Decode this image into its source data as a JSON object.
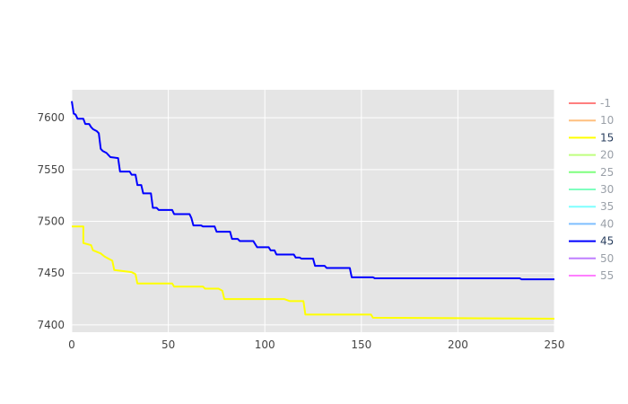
{
  "chart_data": {
    "type": "line",
    "title": "",
    "xlabel": "",
    "ylabel": "",
    "xlim": [
      0,
      250
    ],
    "ylim": [
      7393,
      7627
    ],
    "x_ticks": [
      0,
      50,
      100,
      150,
      200,
      250
    ],
    "y_ticks": [
      7400,
      7450,
      7500,
      7550,
      7600
    ],
    "x_tick_labels": [
      "0",
      "50",
      "100",
      "150",
      "200",
      "250"
    ],
    "y_tick_labels": [
      "7400",
      "7450",
      "7500",
      "7550",
      "7600"
    ],
    "grid": true,
    "legend_position": "right",
    "series": [
      {
        "name": "-1",
        "color": "#ff7f7f",
        "visible": false,
        "points": []
      },
      {
        "name": "10",
        "color": "#ffbf7f",
        "visible": false,
        "points": []
      },
      {
        "name": "15",
        "color": "#ffff00",
        "visible": true,
        "points": [
          [
            0,
            7495
          ],
          [
            6,
            7495
          ],
          [
            6,
            7479
          ],
          [
            10,
            7477
          ],
          [
            11,
            7472
          ],
          [
            15,
            7469
          ],
          [
            17,
            7466
          ],
          [
            19,
            7464
          ],
          [
            21,
            7462
          ],
          [
            22,
            7453
          ],
          [
            31,
            7451
          ],
          [
            33,
            7449
          ],
          [
            34,
            7440
          ],
          [
            52,
            7440
          ],
          [
            53,
            7437
          ],
          [
            68,
            7437
          ],
          [
            69,
            7435
          ],
          [
            76,
            7435
          ],
          [
            78,
            7433
          ],
          [
            79,
            7425
          ],
          [
            110,
            7425
          ],
          [
            113,
            7423
          ],
          [
            120,
            7423
          ],
          [
            121,
            7410
          ],
          [
            155,
            7410
          ],
          [
            156,
            7407
          ],
          [
            250,
            7406
          ]
        ]
      },
      {
        "name": "20",
        "color": "#bfff7f",
        "visible": false,
        "points": []
      },
      {
        "name": "25",
        "color": "#7fff7f",
        "visible": false,
        "points": []
      },
      {
        "name": "30",
        "color": "#7fffbf",
        "visible": false,
        "points": []
      },
      {
        "name": "35",
        "color": "#7fffff",
        "visible": false,
        "points": []
      },
      {
        "name": "40",
        "color": "#7fbfff",
        "visible": false,
        "points": []
      },
      {
        "name": "45",
        "color": "#0000ff",
        "visible": true,
        "points": [
          [
            0,
            7616
          ],
          [
            1,
            7604
          ],
          [
            2,
            7603
          ],
          [
            3,
            7599
          ],
          [
            6,
            7599
          ],
          [
            7,
            7594
          ],
          [
            9,
            7594
          ],
          [
            10,
            7591
          ],
          [
            11,
            7589
          ],
          [
            13,
            7587
          ],
          [
            14,
            7585
          ],
          [
            15,
            7570
          ],
          [
            16,
            7568
          ],
          [
            18,
            7566
          ],
          [
            19,
            7564
          ],
          [
            20,
            7562
          ],
          [
            24,
            7561
          ],
          [
            25,
            7548
          ],
          [
            30,
            7548
          ],
          [
            31,
            7545
          ],
          [
            33,
            7545
          ],
          [
            34,
            7535
          ],
          [
            36,
            7535
          ],
          [
            37,
            7527
          ],
          [
            41,
            7527
          ],
          [
            42,
            7513
          ],
          [
            44,
            7513
          ],
          [
            45,
            7511
          ],
          [
            52,
            7511
          ],
          [
            53,
            7507
          ],
          [
            61,
            7507
          ],
          [
            62,
            7503
          ],
          [
            63,
            7496
          ],
          [
            67,
            7496
          ],
          [
            68,
            7495
          ],
          [
            74,
            7495
          ],
          [
            75,
            7490
          ],
          [
            82,
            7490
          ],
          [
            83,
            7483
          ],
          [
            86,
            7483
          ],
          [
            87,
            7481
          ],
          [
            94,
            7481
          ],
          [
            96,
            7475
          ],
          [
            102,
            7475
          ],
          [
            103,
            7472
          ],
          [
            105,
            7472
          ],
          [
            106,
            7468
          ],
          [
            115,
            7468
          ],
          [
            116,
            7465
          ],
          [
            118,
            7465
          ],
          [
            119,
            7464
          ],
          [
            125,
            7464
          ],
          [
            126,
            7457
          ],
          [
            131,
            7457
          ],
          [
            132,
            7455
          ],
          [
            144,
            7455
          ],
          [
            145,
            7446
          ],
          [
            156,
            7446
          ],
          [
            157,
            7445
          ],
          [
            232,
            7445
          ],
          [
            233,
            7444
          ],
          [
            250,
            7444
          ]
        ]
      },
      {
        "name": "50",
        "color": "#bf7fff",
        "visible": false,
        "points": []
      },
      {
        "name": "55",
        "color": "#ff7fff",
        "visible": false,
        "points": []
      }
    ]
  }
}
